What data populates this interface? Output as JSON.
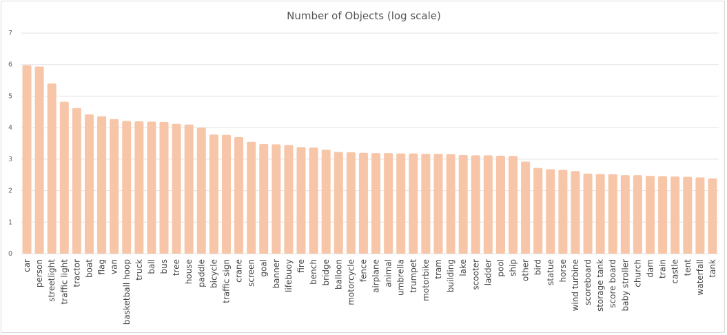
{
  "chart_data": {
    "type": "bar",
    "title": "Number of Objects (log scale)",
    "xlabel": "",
    "ylabel": "",
    "ylim": [
      0,
      7
    ],
    "yticks": [
      "0",
      "1",
      "2",
      "3",
      "4",
      "5",
      "6",
      "7"
    ],
    "grid": true,
    "bar_color": "#f7c6a9",
    "categories": [
      "car",
      "person",
      "streetlight",
      "traffic light",
      "tractor",
      "boat",
      "flag",
      "van",
      "basketball hoop",
      "truck",
      "ball",
      "bus",
      "tree",
      "house",
      "paddle",
      "bicycle",
      "traffic sign",
      "crane",
      "screen",
      "goal",
      "banner",
      "lifebuoy",
      "fire",
      "bench",
      "bridge",
      "balloon",
      "motorcycle",
      "fence",
      "airplane",
      "animal",
      "umbrella",
      "trumpet",
      "motorbike",
      "tram",
      "building",
      "lake",
      "scooter",
      "ladder",
      "pool",
      "ship",
      "other",
      "bird",
      "statue",
      "horse",
      "wind turbine",
      "scoreboard",
      "storage tank",
      "score board",
      "baby stroller",
      "church",
      "dam",
      "train",
      "castle",
      "tent",
      "waterfall",
      "tank"
    ],
    "values": [
      5.98,
      5.94,
      5.4,
      4.82,
      4.62,
      4.42,
      4.36,
      4.27,
      4.21,
      4.2,
      4.19,
      4.18,
      4.12,
      4.1,
      4.0,
      3.78,
      3.77,
      3.7,
      3.55,
      3.48,
      3.47,
      3.45,
      3.38,
      3.37,
      3.3,
      3.23,
      3.22,
      3.2,
      3.19,
      3.19,
      3.18,
      3.18,
      3.17,
      3.17,
      3.16,
      3.13,
      3.12,
      3.12,
      3.11,
      3.1,
      2.92,
      2.72,
      2.68,
      2.66,
      2.62,
      2.54,
      2.53,
      2.52,
      2.49,
      2.49,
      2.47,
      2.46,
      2.45,
      2.44,
      2.42,
      2.39
    ]
  }
}
